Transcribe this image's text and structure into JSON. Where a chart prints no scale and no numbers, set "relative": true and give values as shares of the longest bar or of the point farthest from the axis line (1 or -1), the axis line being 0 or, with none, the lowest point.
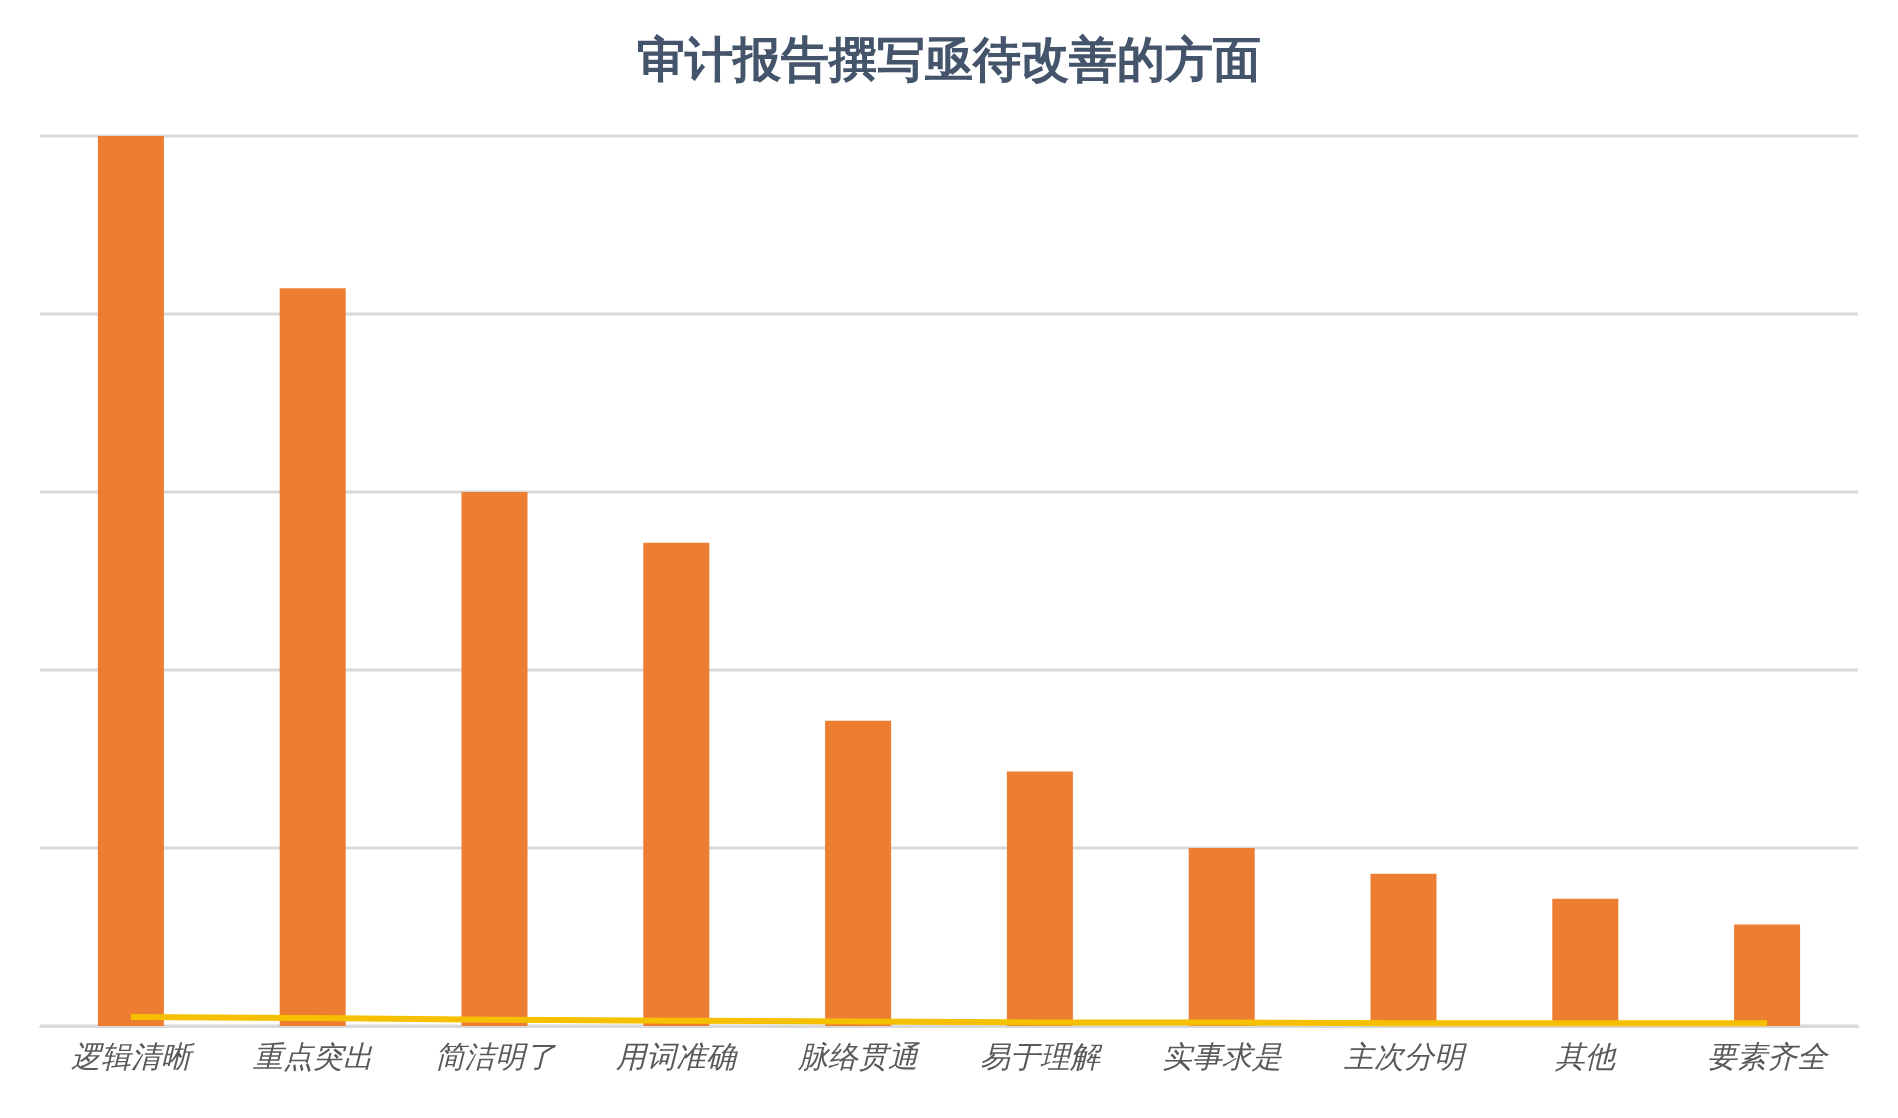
{
  "chart_data": {
    "type": "bar",
    "title": "审计报告撰写亟待改善的方面",
    "relative": true,
    "grid": "y",
    "categories": [
      "逻辑清晰",
      "重点突出",
      "简洁明了",
      "用词准确",
      "脉络贯通",
      "易于理解",
      "实事求是",
      "主次分明",
      "其他",
      "要素齐全"
    ],
    "series": [
      {
        "color": "#ed7d31",
        "values": [
          1,
          0.829,
          0.6,
          0.543,
          0.343,
          0.286,
          0.2,
          0.171,
          0.143,
          0.114
        ]
      },
      {
        "type": "line",
        "color": "#f5c000",
        "marker": "none",
        "values": [
          0.01,
          0.009,
          0.007,
          0.006,
          0.005,
          0.004,
          0.004,
          0.003,
          0.003,
          0.003
        ]
      }
    ]
  }
}
